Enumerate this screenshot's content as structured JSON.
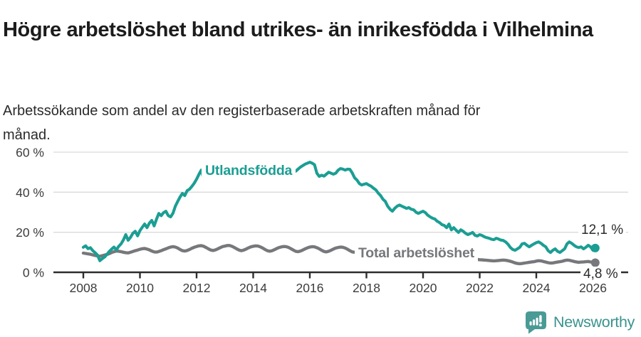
{
  "header": {
    "title": "Högre arbetslöshet bland utrikes- än inrikesfödda i Vilhelmina",
    "subtitle": "Arbetssökande som andel av den registerbaserade arbetskraften månad för månad."
  },
  "chart_data": {
    "type": "line",
    "title": "Högre arbetslöshet bland utrikes- än inrikesfödda i Vilhelmina",
    "subtitle": "Arbetssökande som andel av den registerbaserade arbetskraften månad för månad.",
    "xlabel": "",
    "ylabel": "",
    "grid": "horizontal",
    "legend_position": "inline-labels-on-lines",
    "x_unit": "year-month",
    "x_start": 2008,
    "points_per_year": 12,
    "x_ticks": [
      2008,
      2010,
      2012,
      2014,
      2016,
      2018,
      2020,
      2022,
      2024,
      2026
    ],
    "y_ticks": [
      {
        "value": 0,
        "label": "0 %"
      },
      {
        "value": 20,
        "label": "20 %"
      },
      {
        "value": 40,
        "label": "40 %"
      },
      {
        "value": 60,
        "label": "60 %"
      }
    ],
    "ylim": [
      0,
      62
    ],
    "series": [
      {
        "name": "Utlandsfödda",
        "color": "#1b9e93",
        "end_value_label": "12,1 %",
        "end_value": 12.1,
        "values": [
          12.5,
          13.2,
          11.8,
          12.3,
          10.8,
          9.8,
          8.6,
          5.8,
          6.8,
          7.6,
          8.9,
          10.4,
          11.6,
          12.6,
          11.2,
          13.0,
          14.2,
          16.2,
          18.8,
          16.0,
          17.5,
          19.5,
          20.5,
          18.2,
          20.8,
          22.5,
          24.1,
          22.3,
          24.6,
          25.9,
          23.2,
          26.5,
          29.4,
          28.3,
          29.8,
          30.5,
          28.3,
          27.7,
          29.5,
          33.0,
          35.4,
          37.6,
          39.4,
          38.3,
          40.8,
          41.5,
          42.9,
          44.5,
          46.5,
          48.9,
          51.0,
          46.5,
          48.3,
          49.5,
          50.5,
          49.0,
          48.0,
          49.5,
          50.5,
          49.5,
          48.5,
          49.5,
          50.5,
          49.8,
          48.8,
          49.8,
          50.8,
          49.8,
          48.8,
          49.3,
          50.3,
          49.3,
          48.3,
          49.3,
          50.5,
          51.5,
          50.5,
          49.5,
          50.0,
          51.0,
          50.0,
          49.0,
          50.0,
          51.0,
          50.0,
          49.0,
          50.0,
          51.0,
          52.0,
          51.0,
          50.5,
          51.5,
          52.5,
          53.3,
          54.0,
          54.5,
          55.0,
          54.5,
          53.7,
          49.5,
          47.9,
          48.5,
          48.0,
          49.0,
          50.0,
          49.5,
          49.0,
          49.5,
          51.0,
          51.8,
          51.5,
          51.0,
          51.5,
          51.4,
          49.6,
          47.2,
          46.0,
          44.3,
          43.6,
          44.0,
          44.3,
          43.6,
          43.0,
          42.0,
          41.1,
          39.5,
          38.3,
          36.5,
          35.4,
          33.0,
          31.5,
          30.5,
          32.0,
          33.0,
          33.6,
          33.0,
          32.5,
          31.9,
          32.3,
          31.5,
          31.2,
          30.0,
          29.4,
          30.0,
          30.5,
          29.8,
          28.5,
          27.7,
          27.0,
          26.6,
          25.5,
          24.8,
          23.8,
          23.4,
          22.3,
          24.1,
          21.2,
          22.3,
          21.0,
          19.9,
          21.2,
          20.5,
          19.5,
          18.8,
          19.3,
          19.9,
          18.5,
          18.1,
          18.8,
          18.4,
          17.7,
          17.3,
          17.0,
          16.5,
          16.3,
          17.0,
          16.6,
          16.1,
          15.9,
          15.2,
          14.0,
          12.4,
          11.4,
          11.0,
          11.7,
          12.5,
          14.2,
          14.5,
          13.5,
          12.7,
          13.5,
          14.2,
          14.8,
          15.2,
          14.5,
          13.5,
          12.7,
          10.8,
          9.9,
          11.0,
          11.7,
          10.5,
          9.9,
          10.8,
          11.7,
          14.2,
          15.2,
          14.5,
          13.5,
          12.7,
          12.4,
          12.7,
          11.7,
          12.5,
          13.5,
          12.7,
          11.0,
          12.1
        ]
      },
      {
        "name": "Total arbetslöshet",
        "color": "#77787b",
        "end_value_label": "4,8 %",
        "end_value": 4.8,
        "values": [
          9.6,
          9.4,
          9.2,
          9.0,
          8.7,
          8.4,
          8.2,
          8.0,
          8.3,
          8.6,
          8.9,
          9.3,
          9.9,
          10.3,
          10.6,
          10.5,
          10.3,
          10.0,
          9.8,
          9.7,
          10.0,
          10.4,
          10.8,
          11.1,
          11.5,
          11.8,
          11.9,
          11.6,
          11.2,
          10.6,
          10.2,
          10.1,
          10.4,
          10.8,
          11.3,
          11.7,
          12.2,
          12.6,
          12.8,
          12.6,
          12.1,
          11.4,
          10.8,
          10.6,
          10.9,
          11.4,
          12.0,
          12.5,
          12.9,
          13.2,
          13.3,
          13.0,
          12.4,
          11.7,
          11.1,
          10.9,
          11.2,
          11.7,
          12.3,
          12.8,
          13.1,
          13.4,
          13.4,
          13.0,
          12.4,
          11.7,
          11.1,
          10.8,
          11.1,
          11.6,
          12.2,
          12.7,
          13.0,
          13.2,
          13.1,
          12.7,
          12.1,
          11.4,
          10.8,
          10.5,
          10.8,
          11.3,
          11.9,
          12.4,
          12.7,
          12.9,
          12.8,
          12.4,
          11.8,
          11.1,
          10.5,
          10.3,
          10.6,
          11.1,
          11.7,
          12.2,
          12.6,
          12.8,
          12.7,
          12.3,
          11.7,
          11.0,
          10.4,
          10.2,
          10.5,
          11.0,
          11.6,
          12.1,
          12.4,
          12.6,
          12.5,
          12.1,
          11.5,
          10.8,
          10.2,
          10.0,
          10.3,
          10.8,
          11.3,
          11.7,
          12.0,
          12.1,
          12.0,
          11.6,
          11.0,
          10.3,
          9.7,
          9.5,
          9.8,
          10.2,
          10.7,
          11.1,
          11.3,
          11.4,
          11.2,
          10.8,
          10.2,
          9.6,
          9.2,
          9.0,
          9.2,
          9.5,
          9.9,
          10.2,
          10.5,
          10.6,
          10.8,
          11.2,
          11.0,
          10.5,
          10.0,
          9.7,
          9.5,
          9.3,
          9.1,
          8.9,
          8.7,
          8.5,
          8.2,
          7.9,
          7.6,
          7.3,
          7.0,
          6.8,
          6.7,
          6.6,
          6.5,
          6.4,
          6.3,
          6.2,
          6.1,
          6.0,
          5.9,
          5.8,
          5.7,
          5.8,
          5.9,
          6.0,
          6.1,
          6.0,
          5.8,
          5.5,
          5.1,
          4.7,
          4.4,
          4.3,
          4.4,
          4.6,
          4.8,
          5.0,
          5.2,
          5.3,
          5.6,
          5.8,
          5.7,
          5.4,
          5.1,
          4.8,
          4.6,
          4.7,
          4.9,
          5.1,
          5.3,
          5.5,
          5.9,
          6.1,
          6.0,
          5.7,
          5.4,
          5.2,
          5.0,
          5.1,
          5.2,
          5.3,
          5.4,
          5.2,
          5.0,
          4.8
        ]
      }
    ]
  },
  "colors": {
    "accent_teal": "#1b9e93",
    "neutral_gray": "#77787b",
    "axis": "#2d2d2d",
    "grid": "#dadada",
    "tick_text": "#3c3c3c"
  },
  "footer": {
    "brand_name": "Newsworthy",
    "brand_color": "#3a938e",
    "icon": "newsworthy-logo-icon"
  }
}
